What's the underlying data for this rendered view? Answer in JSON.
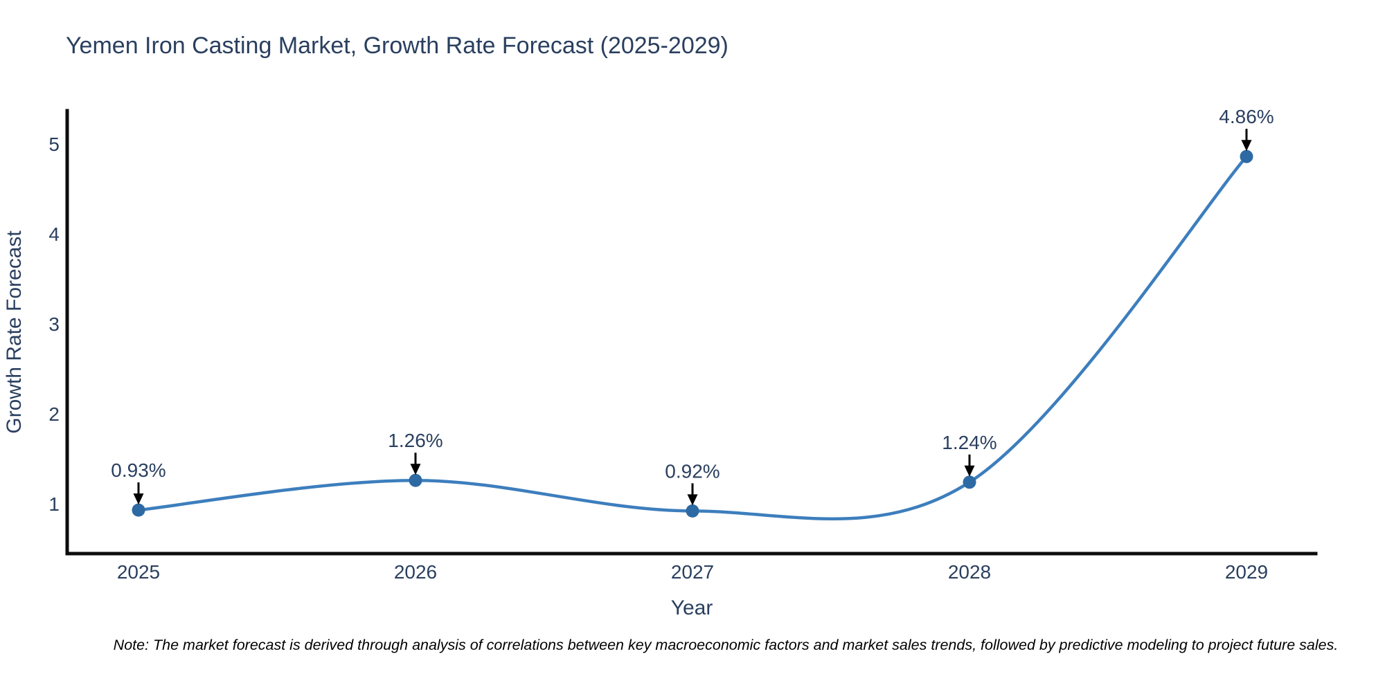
{
  "page": {
    "background": "#ffffff"
  },
  "chart_data": {
    "type": "line",
    "line_shape": "spline",
    "title": "Yemen Iron Casting Market, Growth Rate Forecast (2025-2029)",
    "xlabel": "Year",
    "ylabel": "Growth Rate Forecast",
    "categories": [
      "2025",
      "2026",
      "2027",
      "2028",
      "2029"
    ],
    "values": [
      0.93,
      1.26,
      0.92,
      1.24,
      4.86
    ],
    "point_labels": [
      "0.93%",
      "1.26%",
      "0.92%",
      "1.24%",
      "4.86%"
    ],
    "yticks": [
      1,
      2,
      3,
      4,
      5
    ],
    "ylim": [
      0.45,
      5.37
    ],
    "grid": false,
    "legend_position": "none",
    "note": "Note: The market forecast is derived through analysis of correlations between key macroeconomic factors and market sales trends, followed by predictive modeling to project future sales.",
    "colors": {
      "line": "#3d7ebd",
      "marker": "#2d6aa3",
      "axis": "#0d0d0d",
      "text": "#2a3f5f",
      "annotation_arrow": "#000000",
      "note_text": "#000000",
      "background": "#ffffff"
    }
  }
}
